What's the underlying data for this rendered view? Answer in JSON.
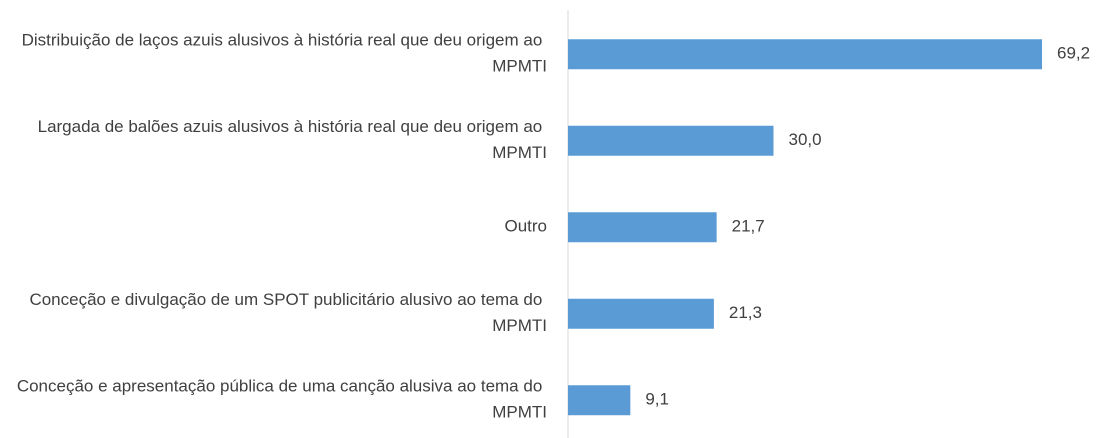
{
  "chart_data": {
    "type": "bar",
    "orientation": "horizontal",
    "categories": [
      "Distribuição de laços azuis alusivos à história real que deu origem ao MPMTI",
      "Largada de balões azuis alusivos à história real que deu origem ao MPMTI",
      "Outro",
      "Conceção e divulgação de um SPOT publicitário alusivo ao tema do MPMTI",
      "Conceção e apresentação pública de uma canção alusiva ao tema do MPMTI"
    ],
    "values": [
      69.2,
      30.0,
      21.7,
      21.3,
      9.1
    ],
    "value_labels": [
      "69,2",
      "30,0",
      "21,7",
      "21,3",
      "9,1"
    ],
    "color": "#5b9bd5"
  }
}
